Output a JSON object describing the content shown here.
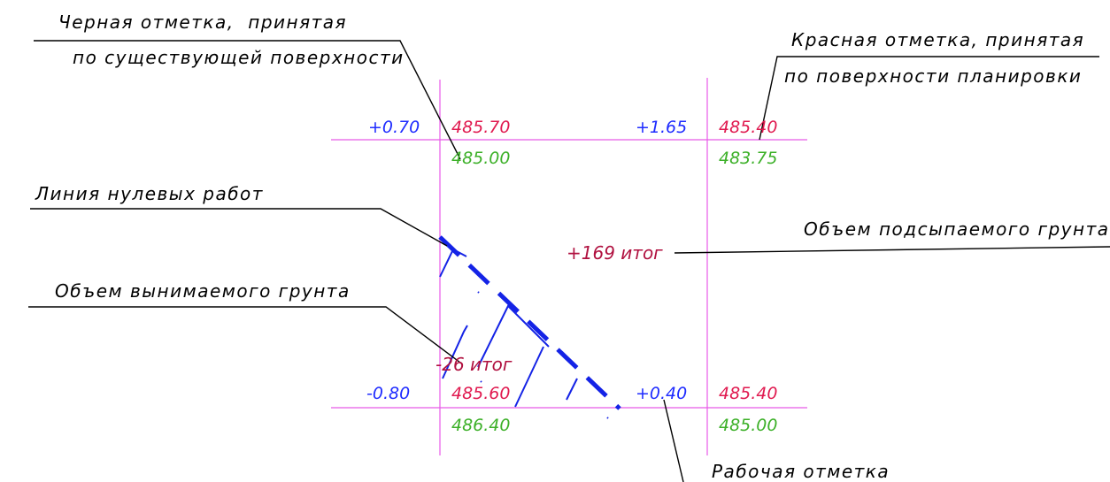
{
  "colors": {
    "grid": "#e85ae8",
    "zero_line": "#1423e6",
    "working_mark": "#1f2cff",
    "design_mark": "#e0194f",
    "existing_mark": "#3cb028",
    "volume": "#b0103f",
    "leader": "#000000"
  },
  "callouts": {
    "black_mark_line1": "Черная отметка,  принятая",
    "black_mark_line2": "по существующей поверхности",
    "red_mark_line1": "Красная отметка, принятая",
    "red_mark_line2": "по поверхности планировки",
    "zero_line": "Линия нулевых работ",
    "fill_volume": "Объем подсыпаемого грунта",
    "cut_volume": "Объем вынимаемого грунта",
    "working_mark": "Рабочая отметка"
  },
  "nodes": {
    "top_left": {
      "working": "+0.70",
      "design": "485.70",
      "existing": "485.00"
    },
    "top_right": {
      "working": "+1.65",
      "design": "485.40",
      "existing": "483.75"
    },
    "bottom_left": {
      "working": "-0.80",
      "design": "485.60",
      "existing": "486.40"
    },
    "bottom_right": {
      "working": "+0.40",
      "design": "485.40",
      "existing": "485.00"
    }
  },
  "volumes": {
    "fill": "+169 итог",
    "cut": "-26 итог"
  }
}
